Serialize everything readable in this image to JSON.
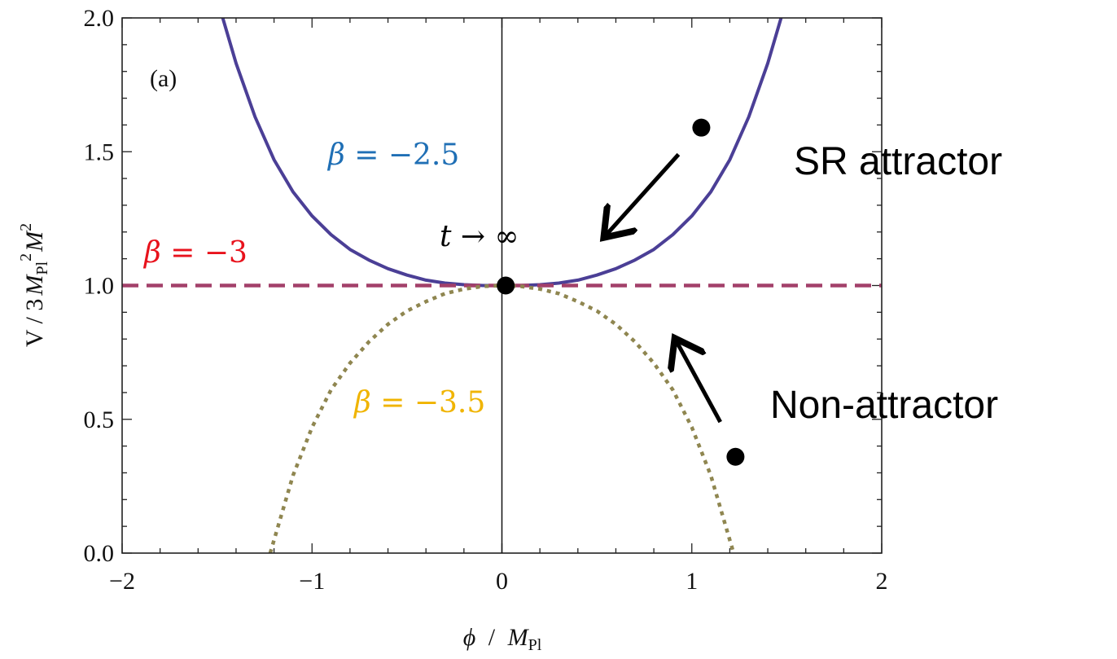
{
  "chart_data": {
    "type": "line",
    "panel_label": "(a)",
    "xlabel_var": "ϕ",
    "xlabel_div": "/",
    "xlabel_M": "M",
    "xlabel_sub": "Pl",
    "ylabel_main": "V / 3",
    "ylabel_M1": "M",
    "ylabel_sub1": "Pl",
    "ylabel_sup1": "2",
    "ylabel_M2": "M",
    "ylabel_sup2": "2",
    "xlim": [
      -2,
      2
    ],
    "ylim": [
      0.0,
      2.0
    ],
    "xticks": [
      -2,
      -1,
      0,
      1,
      2
    ],
    "xtick_labels": [
      "−2",
      "−1",
      "0",
      "1",
      "2"
    ],
    "yticks": [
      0.0,
      0.5,
      1.0,
      1.5,
      2.0
    ],
    "ytick_labels": [
      "0.0",
      "0.5",
      "1.0",
      "1.5",
      "2.0"
    ],
    "grid": false,
    "series": [
      {
        "name": "β = −2.5",
        "label_parts": [
          "β",
          " = −2.5"
        ],
        "color": "#4b3f96",
        "style": "solid",
        "x": [
          -1.47,
          -1.4,
          -1.3,
          -1.2,
          -1.1,
          -1.0,
          -0.9,
          -0.8,
          -0.7,
          -0.6,
          -0.5,
          -0.4,
          -0.3,
          -0.2,
          -0.1,
          0.0,
          0.1,
          0.2,
          0.3,
          0.4,
          0.5,
          0.6,
          0.7,
          0.8,
          0.9,
          1.0,
          1.1,
          1.2,
          1.3,
          1.4,
          1.47
        ],
        "y": [
          2.0,
          1.83,
          1.63,
          1.47,
          1.35,
          1.26,
          1.19,
          1.135,
          1.095,
          1.063,
          1.039,
          1.02,
          1.009,
          1.003,
          1.0,
          1.0,
          1.0,
          1.003,
          1.009,
          1.02,
          1.039,
          1.063,
          1.095,
          1.135,
          1.19,
          1.26,
          1.35,
          1.47,
          1.63,
          1.83,
          2.0
        ]
      },
      {
        "name": "β = −3",
        "label_parts": [
          "β",
          " = −3"
        ],
        "color": "#a3406a",
        "style": "dashed",
        "x": [
          -2,
          2
        ],
        "y": [
          1.0,
          1.0
        ]
      },
      {
        "name": "β = −3.5",
        "label_parts": [
          "β",
          " = −3.5"
        ],
        "color": "#8f8650",
        "style": "dotted",
        "x": [
          -1.22,
          -1.1,
          -1.0,
          -0.9,
          -0.8,
          -0.7,
          -0.6,
          -0.5,
          -0.4,
          -0.3,
          -0.2,
          -0.1,
          0.0,
          0.1,
          0.2,
          0.3,
          0.4,
          0.5,
          0.6,
          0.7,
          0.8,
          0.9,
          1.0,
          1.1,
          1.22
        ],
        "y": [
          0.0,
          0.29,
          0.47,
          0.61,
          0.71,
          0.79,
          0.855,
          0.905,
          0.94,
          0.97,
          0.987,
          0.997,
          1.0,
          0.997,
          0.987,
          0.97,
          0.94,
          0.905,
          0.855,
          0.79,
          0.71,
          0.61,
          0.47,
          0.29,
          0.0
        ]
      }
    ],
    "series_label_colors": [
      "#1f6fb5",
      "#e8121c",
      "#f0b400"
    ],
    "points": [
      {
        "x": 0.02,
        "y": 1.0
      },
      {
        "x": 1.05,
        "y": 1.59
      },
      {
        "x": 1.23,
        "y": 0.36
      }
    ],
    "arrows": [
      {
        "from": [
          0.93,
          1.49
        ],
        "to": [
          0.55,
          1.19
        ]
      },
      {
        "from": [
          1.15,
          0.49
        ],
        "to": [
          0.92,
          0.79
        ]
      }
    ],
    "annotations": {
      "t_inf_var": "t",
      "t_inf_rest": " → ∞",
      "sr_attractor": "SR attractor",
      "non_attractor": "Non-attractor"
    }
  }
}
